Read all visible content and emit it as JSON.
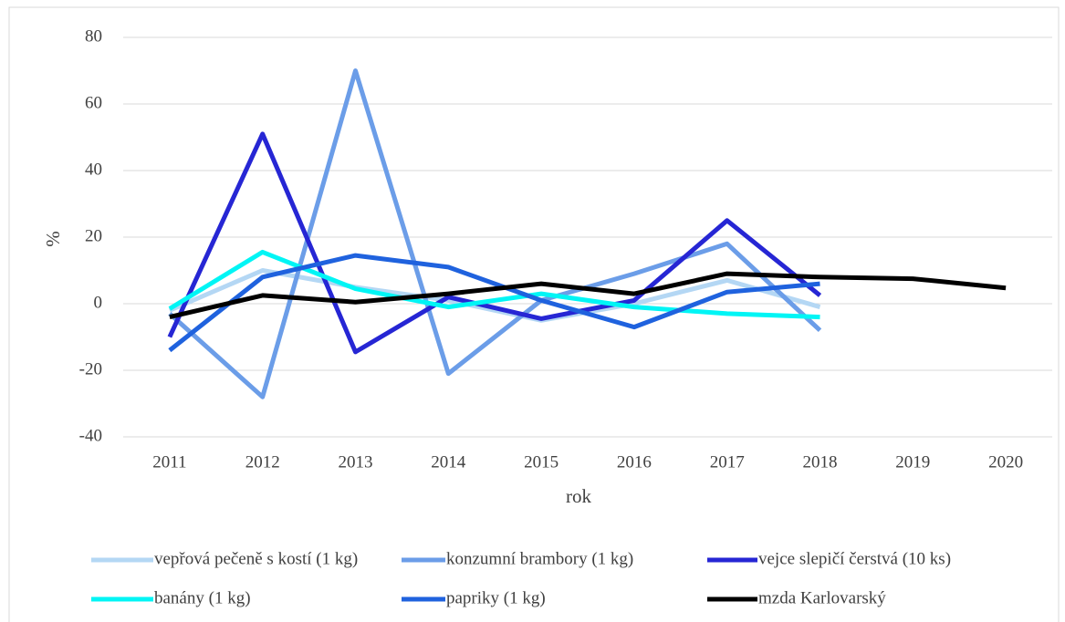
{
  "chart_data": {
    "type": "line",
    "x_label": "rok",
    "y_label": "%",
    "categories": [
      "2011",
      "2012",
      "2013",
      "2014",
      "2015",
      "2016",
      "2017",
      "2018",
      "2019",
      "2020"
    ],
    "series": [
      {
        "name": "vepřová pečeně s kostí (1 kg)",
        "color": "#b4d7f4",
        "values": [
          -2,
          10,
          5,
          1,
          -5,
          0,
          7,
          -1,
          null,
          null
        ]
      },
      {
        "name": "konzumní brambory (1 kg)",
        "color": "#6b9de8",
        "values": [
          -3,
          -28,
          70,
          -21,
          1,
          9,
          18,
          -8,
          null,
          null
        ]
      },
      {
        "name": "vejce slepičí čerstvá (10 ks)",
        "color": "#2626d4",
        "values": [
          -10,
          51,
          -14.5,
          2,
          -4.5,
          1,
          25,
          2.5,
          null,
          null
        ]
      },
      {
        "name": "banány (1 kg)",
        "color": "#00f5f5",
        "values": [
          -1.5,
          15.5,
          4.5,
          -1,
          3,
          -1,
          -3,
          -4,
          null,
          null
        ]
      },
      {
        "name": "papriky (1 kg)",
        "color": "#1f62de",
        "values": [
          -14,
          8,
          14.5,
          11,
          1,
          -7,
          3.5,
          6,
          null,
          null
        ]
      },
      {
        "name": "mzda Karlovarský",
        "color": "#000000",
        "values": [
          -4,
          2.5,
          0.5,
          3,
          6,
          3,
          9,
          8,
          7.5,
          4.7
        ]
      }
    ],
    "ylim": [
      -40,
      80
    ],
    "yticks": [
      -40,
      -20,
      0,
      20,
      40,
      60,
      80
    ],
    "grid": true,
    "legend": "bottom"
  }
}
